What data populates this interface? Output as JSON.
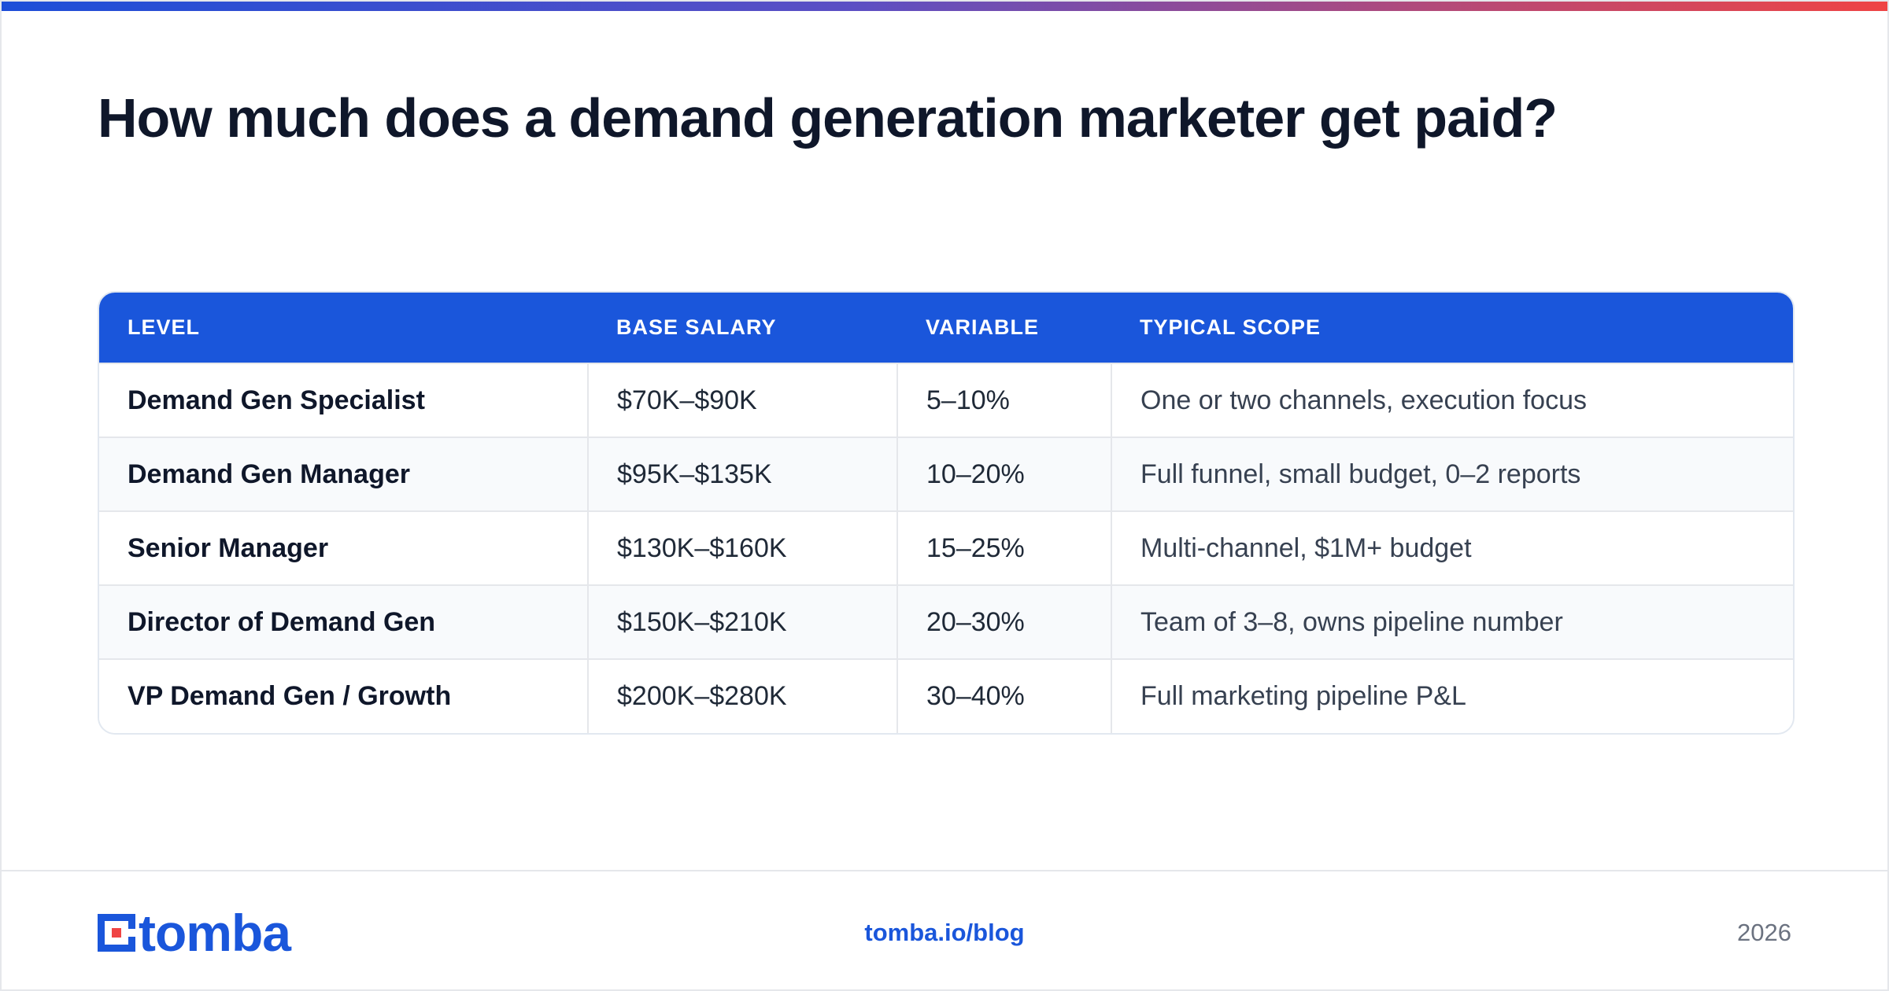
{
  "title": "How much does a demand generation marketer get paid?",
  "table": {
    "headers": [
      "LEVEL",
      "BASE SALARY",
      "VARIABLE",
      "TYPICAL SCOPE"
    ],
    "rows": [
      {
        "level": "Demand Gen Specialist",
        "base_salary": "$70K–$90K",
        "variable": "5–10%",
        "scope": "One or two channels, execution focus"
      },
      {
        "level": "Demand Gen Manager",
        "base_salary": "$95K–$135K",
        "variable": "10–20%",
        "scope": "Full funnel, small budget, 0–2 reports"
      },
      {
        "level": "Senior Manager",
        "base_salary": "$130K–$160K",
        "variable": "15–25%",
        "scope": "Multi-channel, $1M+ budget"
      },
      {
        "level": "Director of Demand Gen",
        "base_salary": "$150K–$210K",
        "variable": "20–30%",
        "scope": "Team of 3–8, owns pipeline number"
      },
      {
        "level": "VP Demand Gen / Growth",
        "base_salary": "$200K–$280K",
        "variable": "30–40%",
        "scope": "Full marketing pipeline P&L"
      }
    ]
  },
  "footer": {
    "logo_text": "tomba",
    "logo_icon": "tomba-logo-icon",
    "link": "tomba.io/blog",
    "year": "2026"
  },
  "colors": {
    "brand_blue": "#1a56db",
    "accent_red": "#ef4444",
    "title": "#0f172a"
  }
}
